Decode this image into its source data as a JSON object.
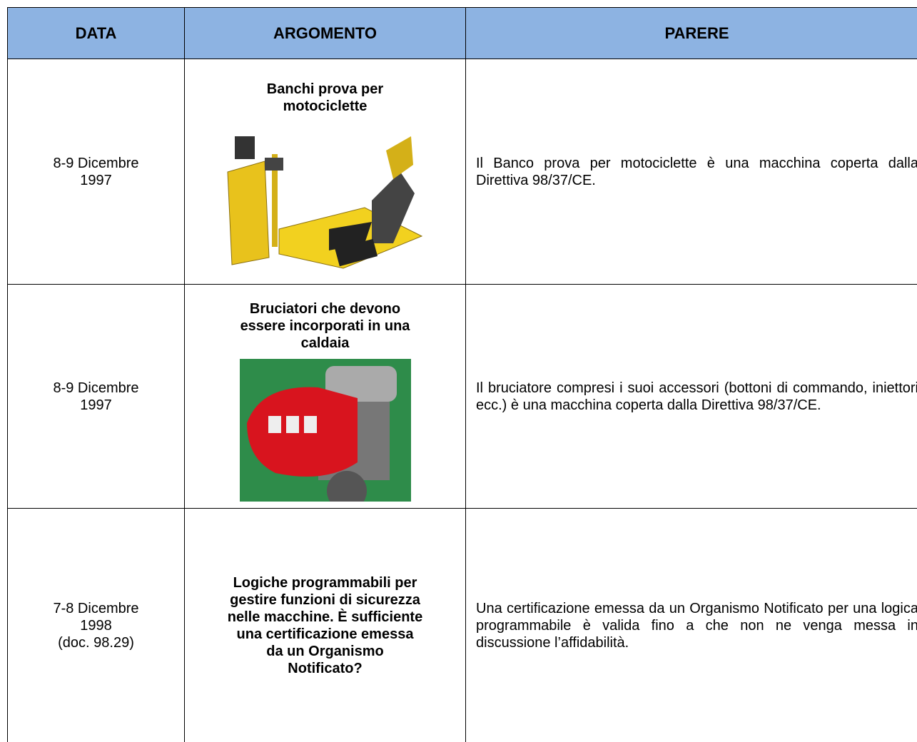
{
  "header": {
    "columns": [
      "DATA",
      "ARGOMENTO",
      "PARERE"
    ]
  },
  "rows": [
    {
      "data": [
        "8-9 Dicembre",
        "1997"
      ],
      "argomento": [
        "Banchi prova per",
        "motociclette"
      ],
      "parere": "Il Banco prova per motociclette è una macchina coperta dalla Direttiva 98/37/CE."
    },
    {
      "data": [
        "8-9 Dicembre",
        "1997"
      ],
      "argomento": [
        "Bruciatori che devono",
        "essere incorporati in una",
        "caldaia"
      ],
      "parere": "Il bruciatore compresi i suoi accessori (bottoni di commando, iniettori ecc.) è una macchina coperta dalla Direttiva 98/37/CE."
    },
    {
      "data": [
        "7-8 Dicembre",
        "1998",
        "(doc. 98.29)"
      ],
      "argomento": [
        "Logiche programmabili per",
        "gestire funzioni di sicurezza",
        "nelle macchine. È sufficiente",
        "una certificazione emessa",
        "da un Organismo",
        "Notificato?"
      ],
      "parere": "Una certificazione emessa da un Organismo Notificato per una logica programmabile è valida fino a che non ne venga messa in discussione l’affidabilità."
    }
  ]
}
